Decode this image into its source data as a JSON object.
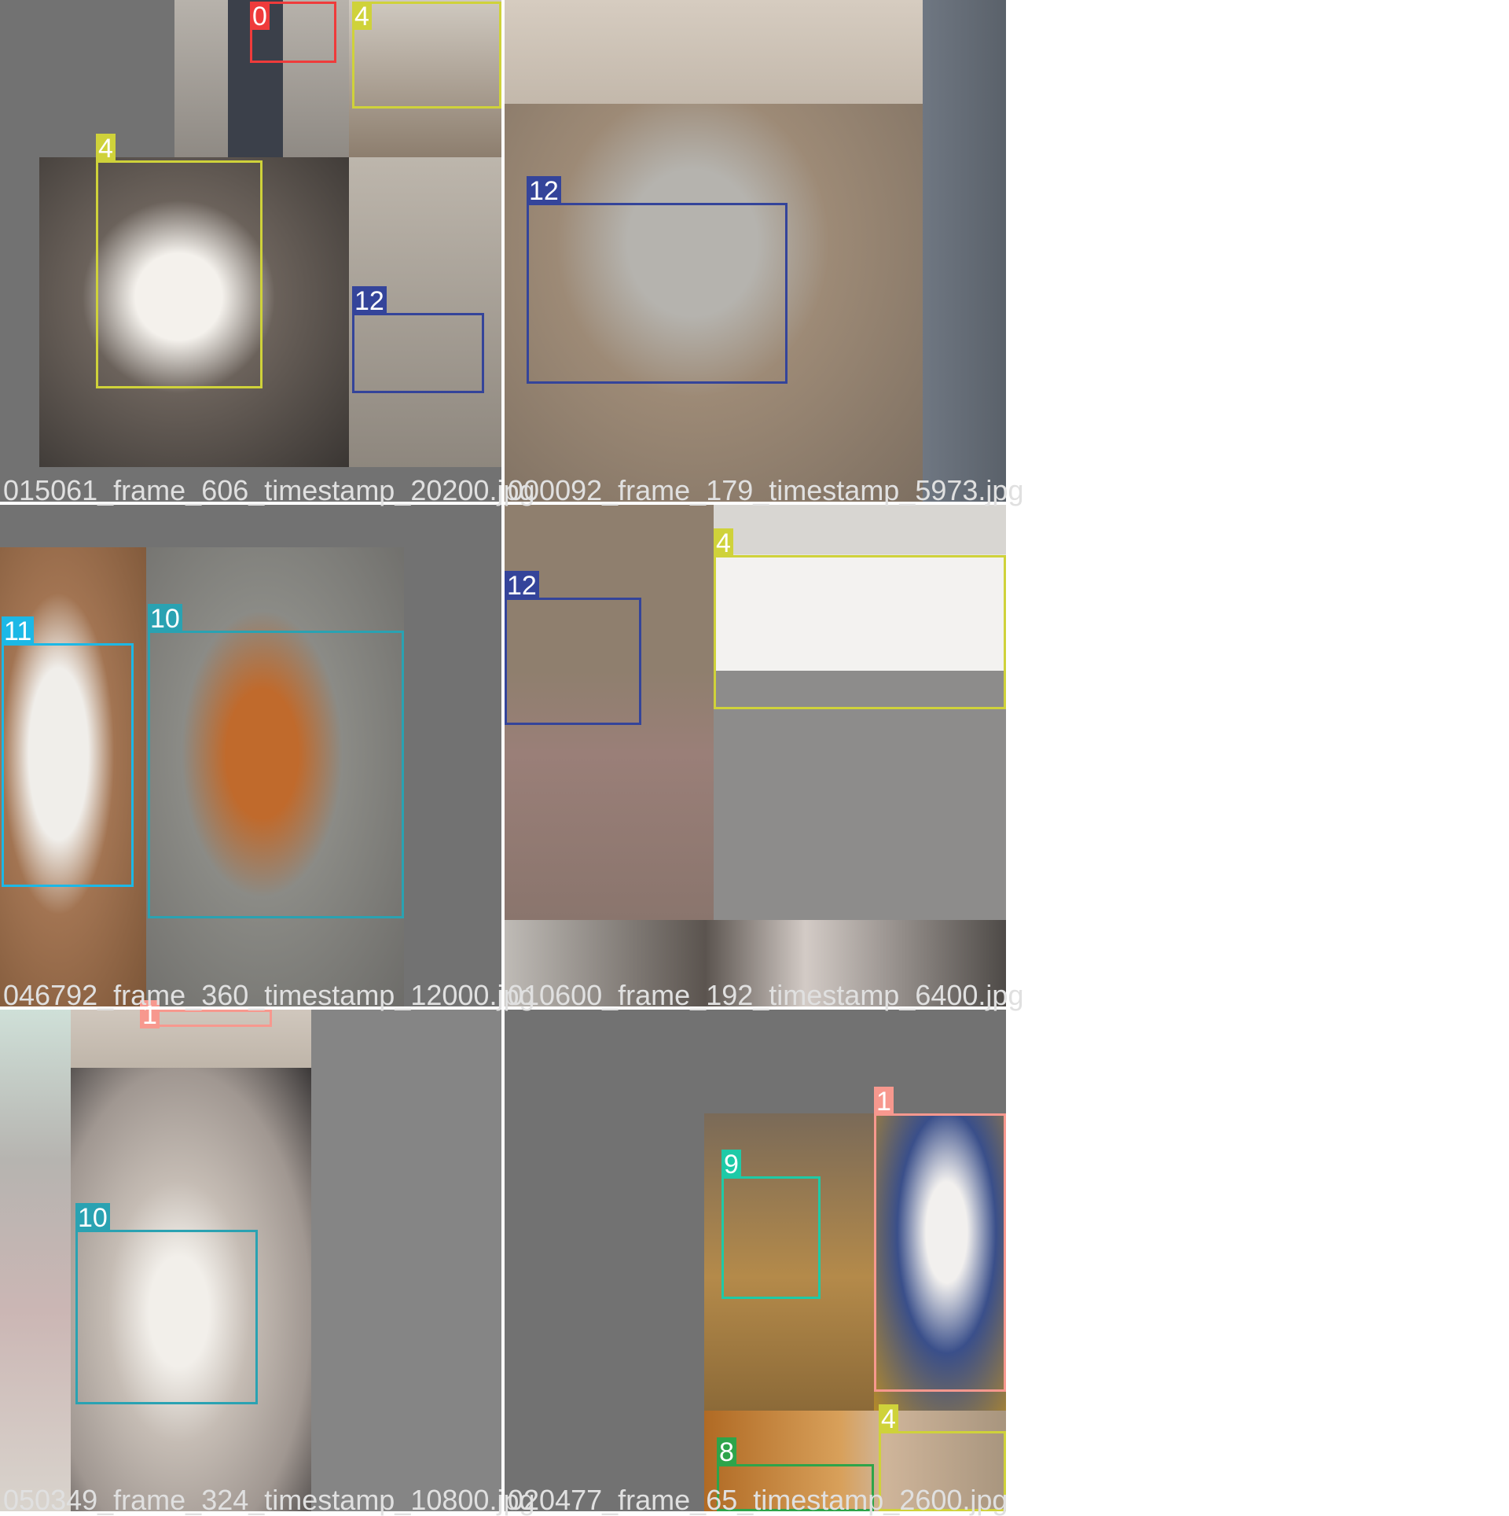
{
  "colors": {
    "class_0": "#ef3b3b",
    "class_1": "#f7988e",
    "class_4": "#cfd23a",
    "class_8": "#2ea44a",
    "class_9": "#1ecaa7",
    "class_10": "#2aa2b2",
    "class_11": "#1cb8e6",
    "class_12": "#34449a"
  },
  "tiles": [
    {
      "caption": "015061_frame_606_timestamp_20200.jpg",
      "labels": [
        "0",
        "4",
        "4",
        "12"
      ]
    },
    {
      "caption": "000092_frame_179_timestamp_5973.jpg",
      "labels": [
        "12"
      ]
    },
    {
      "caption": "046792_frame_360_timestamp_12000.jpg",
      "labels": [
        "11",
        "10"
      ]
    },
    {
      "caption": "010600_frame_192_timestamp_6400.jpg",
      "labels": [
        "12",
        "4"
      ]
    },
    {
      "caption": "050349_frame_324_timestamp_10800.jpg",
      "labels": [
        "1",
        "10"
      ]
    },
    {
      "caption": "020477_frame_65_timestamp_2600.jpg",
      "labels": [
        "1",
        "9",
        "4",
        "8"
      ]
    }
  ]
}
